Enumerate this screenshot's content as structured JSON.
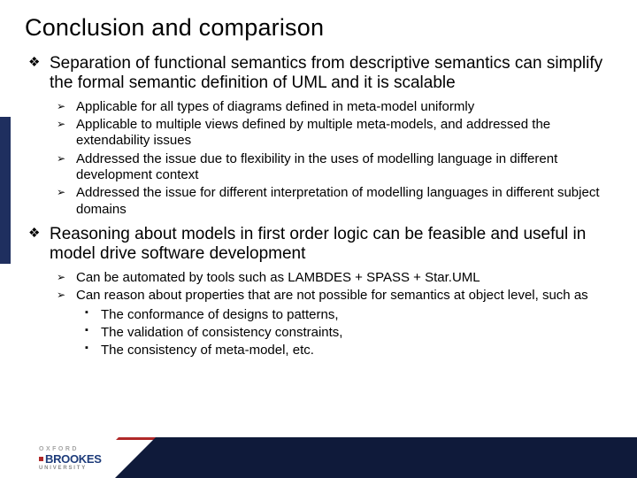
{
  "colors": {
    "background": "#ffffff",
    "text": "#000000",
    "sidebar": "#1f2f5f",
    "footer_dark": "#0f1a3a",
    "footer_red": "#b02828",
    "logo_blue": "#1d3b7a",
    "logo_gray": "#a5a5a5"
  },
  "typography": {
    "title_fontsize": 27,
    "l1_fontsize": 19,
    "l2_fontsize": 15,
    "l3_fontsize": 15,
    "font_family": "Arial"
  },
  "title": "Conclusion and comparison",
  "bullets": [
    {
      "text": "Separation of functional semantics from descriptive semantics can simplify the formal semantic definition of UML and it is scalable",
      "sub": [
        {
          "text": "Applicable for all types of diagrams defined in meta-model uniformly"
        },
        {
          "text": "Applicable to multiple views defined by multiple meta-models, and addressed the extendability issues"
        },
        {
          "text": "Addressed the issue due to flexibility in the uses of modelling language in different development context"
        },
        {
          "text": "Addressed the issue for different interpretation of modelling languages in different subject domains"
        }
      ]
    },
    {
      "text": "Reasoning about models in first order logic can be feasible and useful in model drive software development",
      "sub": [
        {
          "text": "Can be automated by tools such as LAMBDES + SPASS + Star.UML"
        },
        {
          "text": "Can reason about properties that are not possible for semantics at object level, such as",
          "sub": [
            {
              "text": "The conformance of designs to patterns,"
            },
            {
              "text": "The validation of consistency constraints,"
            },
            {
              "text": "The consistency of meta-model, etc."
            }
          ]
        }
      ]
    }
  ],
  "logo": {
    "line1": "OXFORD",
    "line2": "BROOKES",
    "line3": "UNIVERSITY"
  }
}
